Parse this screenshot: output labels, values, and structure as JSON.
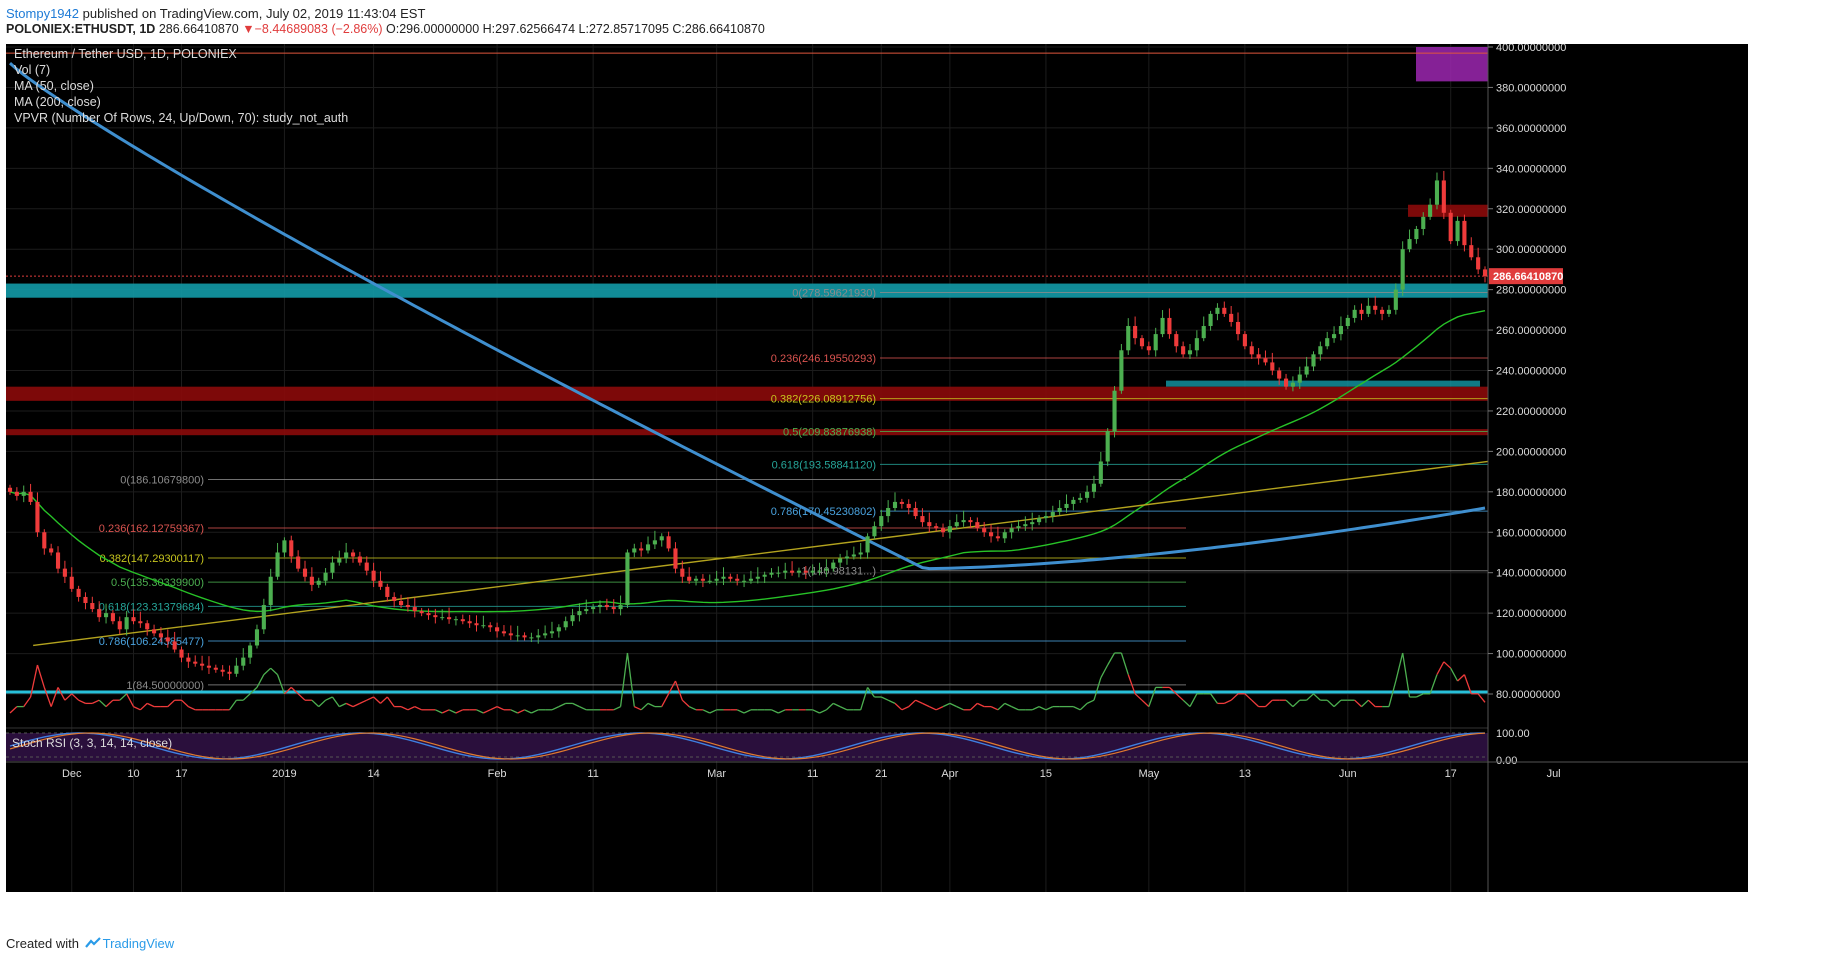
{
  "header": {
    "author": "Stompy1942",
    "published_text": "published on TradingView.com, July 02, 2019 11:43:04 EST",
    "symbol": "POLONIEX:ETHUSDT, 1D",
    "last": "286.66410870",
    "change_arrow": "▼",
    "change": "−8.44689083 (−2.86%)",
    "ohlc": "O:296.00000000 H:297.62566474 L:272.85717095 C:286.66410870"
  },
  "legend": {
    "title": "Ethereum / Tether USD, 1D, POLONIEX",
    "line1": "Vol (7)",
    "line2": "MA (50, close)",
    "line3": "MA (200, close)",
    "line4": "VPVR (Number Of Rows, 24, Up/Down, 70): study_not_auth"
  },
  "footer": {
    "created_with": "Created with",
    "brand": "TradingView"
  },
  "chart_data": {
    "type": "candlestick",
    "title": "Ethereum / Tether USD, 1D, POLONIEX",
    "ylim": [
      0,
      400
    ],
    "y_ticks": [
      "400.00000000",
      "380.00000000",
      "360.00000000",
      "340.00000000",
      "320.00000000",
      "300.00000000",
      "280.00000000",
      "260.00000000",
      "240.00000000",
      "220.00000000",
      "200.00000000",
      "180.00000000",
      "160.00000000",
      "140.00000000",
      "120.00000000",
      "100.00000000",
      "80.00000000"
    ],
    "y_tick_values": [
      400,
      380,
      360,
      340,
      320,
      300,
      280,
      260,
      240,
      220,
      200,
      180,
      160,
      140,
      120,
      100,
      80
    ],
    "x_labels": [
      "Dec",
      "10",
      "17",
      "2019",
      "14",
      "Feb",
      "11",
      "Mar",
      "11",
      "21",
      "Apr",
      "15",
      "May",
      "13",
      "Jun",
      "17",
      "Jul"
    ],
    "x_label_days": [
      9,
      18,
      25,
      40,
      53,
      71,
      85,
      103,
      117,
      127,
      137,
      151,
      166,
      180,
      195,
      210,
      225
    ],
    "last_price_label": "286.66410870",
    "candles_close": [
      180,
      178,
      180,
      175,
      160,
      152,
      150,
      142,
      138,
      132,
      128,
      125,
      122,
      118,
      120,
      116,
      112,
      118,
      116,
      115,
      112,
      110,
      108,
      106,
      102,
      98,
      96,
      95,
      94,
      93,
      92,
      91,
      90,
      94,
      98,
      104,
      112,
      124,
      138,
      150,
      156,
      148,
      142,
      138,
      134,
      136,
      140,
      145,
      147,
      150,
      148,
      145,
      141,
      136,
      133,
      128,
      126,
      124,
      123,
      121,
      120,
      119,
      118,
      118,
      117,
      117,
      116,
      115,
      114,
      114,
      113,
      111,
      110,
      109,
      109,
      108,
      108,
      109,
      110,
      111,
      113,
      116,
      119,
      121,
      122,
      123,
      124,
      123,
      122,
      124,
      150,
      152,
      151,
      154,
      156,
      158,
      152,
      142,
      138,
      136,
      137,
      136,
      136,
      137,
      138,
      137,
      136,
      136,
      137,
      138,
      139,
      140,
      140,
      141,
      140,
      141,
      140,
      141,
      141,
      142,
      145,
      147,
      148,
      149,
      150,
      158,
      163,
      168,
      172,
      175,
      174,
      172,
      168,
      165,
      163,
      162,
      160,
      163,
      165,
      166,
      165,
      162,
      160,
      158,
      157,
      160,
      162,
      163,
      164,
      165,
      167,
      168,
      170,
      172,
      174,
      176,
      177,
      180,
      184,
      195,
      210,
      230,
      250,
      262,
      256,
      252,
      250,
      258,
      266,
      258,
      252,
      248,
      250,
      256,
      262,
      268,
      271,
      268,
      264,
      258,
      252,
      248,
      246,
      244,
      240,
      236,
      232,
      234,
      238,
      242,
      248,
      252,
      256,
      258,
      262,
      266,
      270,
      268,
      272,
      270,
      268,
      270,
      280,
      300,
      305,
      310,
      316,
      322,
      334,
      318,
      304,
      314,
      302,
      296,
      290,
      286.66
    ],
    "fib_left": [
      {
        "label": "0(186.10679800)",
        "value": 186.1068
      },
      {
        "label": "0.236(162.12759367)",
        "value": 162.1276
      },
      {
        "label": "0.382(147.29300117)",
        "value": 147.293
      },
      {
        "label": "0.5(135.30339900)",
        "value": 135.3034
      },
      {
        "label": "0.618(123.31379684)",
        "value": 123.3138
      },
      {
        "label": "0.786(106.24385477)",
        "value": 106.2439
      },
      {
        "label": "1(84.50000000)",
        "value": 84.5
      }
    ],
    "fib_right": [
      {
        "label": "0(278.59621930)",
        "value": 278.5962
      },
      {
        "label": "0.236(246.19550293)",
        "value": 246.1955
      },
      {
        "label": "0.382(226.08912756)",
        "value": 226.0891
      },
      {
        "label": "0.5(209.83876938)",
        "value": 209.8388
      },
      {
        "label": "0.618(193.58841120)",
        "value": 193.5884
      },
      {
        "label": "0.786(170.45230802)",
        "value": 170.4523
      },
      {
        "label": "1(140.98131...)",
        "value": 140.9813
      }
    ],
    "zones": [
      {
        "name": "support",
        "color": "#139aa7",
        "low": 276,
        "high": 283
      },
      {
        "name": "resistance",
        "color": "#8b0a0a",
        "low": 225,
        "high": 232
      },
      {
        "name": "resistance",
        "color": "#8b0a0a",
        "low": 208,
        "high": 211
      },
      {
        "name": "resistance",
        "color": "#8b0a0a",
        "low": 316,
        "high": 322
      },
      {
        "name": "target",
        "color": "#9c27b0",
        "low": 383,
        "high": 400
      }
    ],
    "indicators": [
      "Vol (7)",
      "MA (50, close)",
      "MA (200, close)",
      "VPVR",
      "Stoch RSI (3, 3, 14, 14, close)"
    ],
    "stoch_rsi": {
      "label": "Stoch RSI (3, 3, 14, 14, close)",
      "ticks": [
        "100.00",
        "0.00"
      ]
    },
    "colors": {
      "up": "#4caf50",
      "down": "#ef3b3b",
      "ma50": "#27c227",
      "ma200": "#3f8fcf",
      "trend": "#b3a31e",
      "bg": "#000000"
    }
  }
}
